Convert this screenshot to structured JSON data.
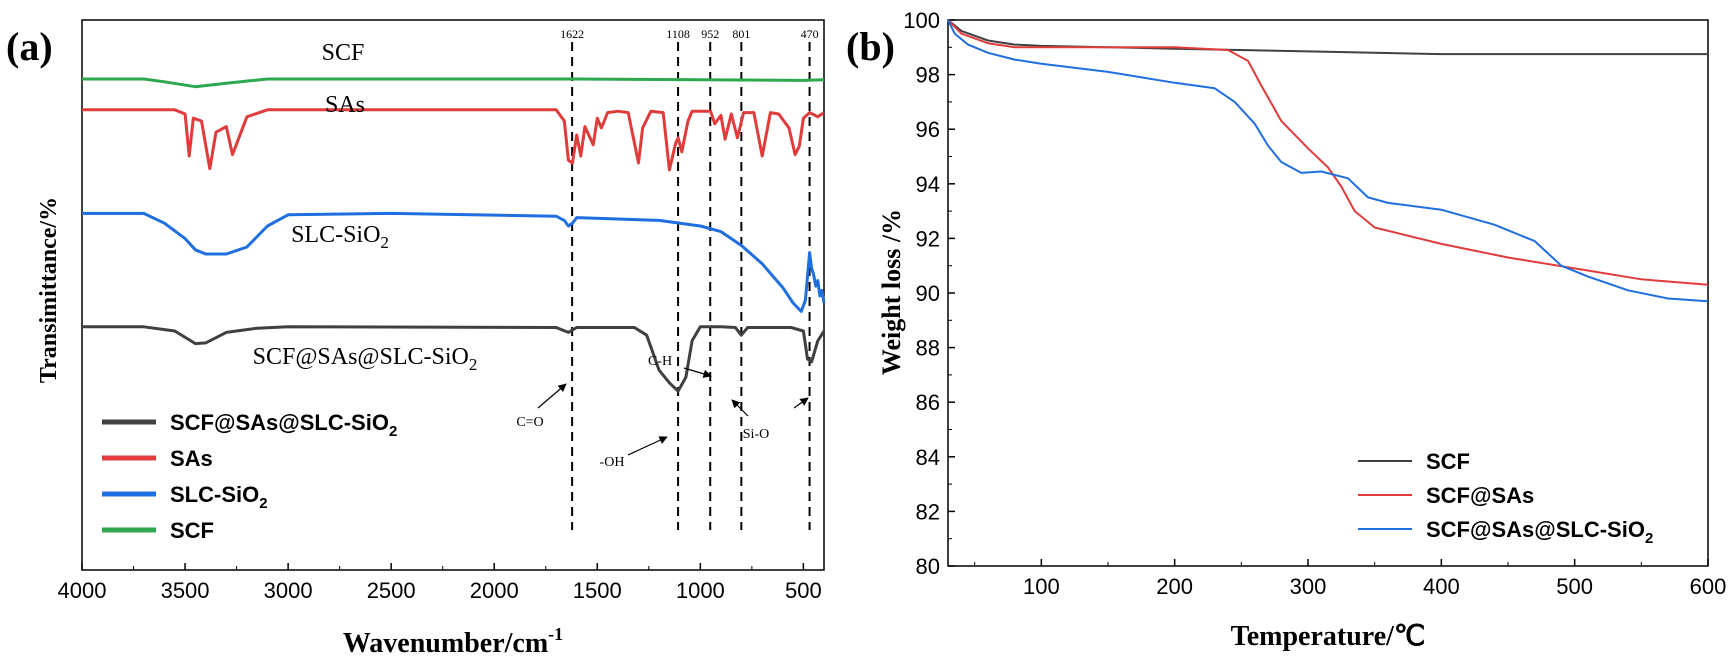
{
  "panels": {
    "a": {
      "label": "(a)"
    },
    "b": {
      "label": "(b)"
    }
  },
  "chart_data": [
    {
      "id": "ftir",
      "type": "line",
      "xlabel": "Wavenumber/cm",
      "xlabel_sup": "-1",
      "ylabel": "Transimittance/%",
      "xlim": [
        4000,
        400
      ],
      "x_ticks": [
        4000,
        3500,
        3000,
        2500,
        2000,
        1500,
        1000,
        500
      ],
      "x_tick_labels": [
        "4000",
        "3500",
        "3000",
        "2500",
        "2000",
        "1500",
        "1000",
        "500"
      ],
      "y_ticks_shown": false,
      "grid": false,
      "legend_position": "bottom-left",
      "series": [
        {
          "name": "SCF@SAs@SLC-SiO2",
          "legend_main": "SCF@SAs@SLC-SiO",
          "legend_sub": "2",
          "label_main": "SCF@SAs@SLC-SiO",
          "label_sub": "2",
          "color": "#404040",
          "points": [
            [
              4000,
              1.3
            ],
            [
              3700,
              1.3
            ],
            [
              3550,
              1.0
            ],
            [
              3450,
              0.1
            ],
            [
              3400,
              0.15
            ],
            [
              3300,
              0.9
            ],
            [
              3150,
              1.2
            ],
            [
              3000,
              1.3
            ],
            [
              1700,
              1.25
            ],
            [
              1640,
              0.9
            ],
            [
              1600,
              1.25
            ],
            [
              1320,
              1.25
            ],
            [
              1260,
              0.7
            ],
            [
              1200,
              -1.8
            ],
            [
              1150,
              -2.7
            ],
            [
              1108,
              -3.3
            ],
            [
              1070,
              -2.3
            ],
            [
              1040,
              0.3
            ],
            [
              1000,
              1.3
            ],
            [
              900,
              1.3
            ],
            [
              830,
              1.25
            ],
            [
              801,
              0.7
            ],
            [
              770,
              1.25
            ],
            [
              560,
              1.25
            ],
            [
              500,
              1.0
            ],
            [
              480,
              -1.0
            ],
            [
              460,
              -1.2
            ],
            [
              430,
              0.3
            ],
            [
              400,
              1.0
            ]
          ]
        },
        {
          "name": "SAs",
          "legend_main": "SAs",
          "legend_sub": "",
          "label_main": "SAs",
          "label_sub": "",
          "color": "#e03c3c",
          "points": [
            [
              4000,
              16.8
            ],
            [
              3550,
              16.8
            ],
            [
              3500,
              16.5
            ],
            [
              3480,
              13.5
            ],
            [
              3460,
              16.2
            ],
            [
              3420,
              16.0
            ],
            [
              3380,
              12.6
            ],
            [
              3350,
              15.2
            ],
            [
              3300,
              15.6
            ],
            [
              3270,
              13.6
            ],
            [
              3200,
              16.3
            ],
            [
              3100,
              16.8
            ],
            [
              1700,
              16.8
            ],
            [
              1660,
              16.0
            ],
            [
              1640,
              13.2
            ],
            [
              1620,
              13.0
            ],
            [
              1600,
              15.0
            ],
            [
              1580,
              13.5
            ],
            [
              1560,
              15.6
            ],
            [
              1520,
              14.3
            ],
            [
              1500,
              16.2
            ],
            [
              1480,
              15.5
            ],
            [
              1450,
              16.6
            ],
            [
              1400,
              16.7
            ],
            [
              1350,
              16.6
            ],
            [
              1300,
              13.0
            ],
            [
              1280,
              15.5
            ],
            [
              1240,
              16.7
            ],
            [
              1180,
              16.6
            ],
            [
              1150,
              12.5
            ],
            [
              1120,
              14.4
            ],
            [
              1108,
              14.8
            ],
            [
              1090,
              13.8
            ],
            [
              1060,
              16.0
            ],
            [
              1040,
              16.7
            ],
            [
              1000,
              16.7
            ],
            [
              950,
              16.7
            ],
            [
              930,
              15.8
            ],
            [
              900,
              16.4
            ],
            [
              880,
              14.7
            ],
            [
              850,
              16.5
            ],
            [
              820,
              14.8
            ],
            [
              790,
              16.6
            ],
            [
              740,
              16.6
            ],
            [
              700,
              13.5
            ],
            [
              660,
              16.6
            ],
            [
              620,
              16.5
            ],
            [
              570,
              15.5
            ],
            [
              540,
              13.6
            ],
            [
              520,
              14.2
            ],
            [
              500,
              16.2
            ],
            [
              470,
              16.6
            ],
            [
              430,
              16.3
            ],
            [
              400,
              16.6
            ]
          ]
        },
        {
          "name": "SLC-SiO2",
          "legend_main": "SLC-SiO",
          "legend_sub": "2",
          "label_main": "SLC-SiO",
          "label_sub": "2",
          "color": "#1f6fe0",
          "points": [
            [
              4000,
              9.4
            ],
            [
              3700,
              9.4
            ],
            [
              3600,
              8.7
            ],
            [
              3500,
              7.6
            ],
            [
              3450,
              6.8
            ],
            [
              3400,
              6.5
            ],
            [
              3300,
              6.5
            ],
            [
              3200,
              7.0
            ],
            [
              3100,
              8.5
            ],
            [
              3000,
              9.3
            ],
            [
              2500,
              9.4
            ],
            [
              1700,
              9.2
            ],
            [
              1660,
              8.9
            ],
            [
              1640,
              8.5
            ],
            [
              1620,
              8.7
            ],
            [
              1600,
              9.1
            ],
            [
              1400,
              9.0
            ],
            [
              1200,
              8.9
            ],
            [
              1000,
              8.5
            ],
            [
              900,
              8.1
            ],
            [
              800,
              7.1
            ],
            [
              700,
              5.8
            ],
            [
              600,
              4.1
            ],
            [
              550,
              3.0
            ],
            [
              510,
              2.4
            ],
            [
              490,
              3.2
            ],
            [
              470,
              6.6
            ],
            [
              460,
              5.5
            ],
            [
              450,
              5.0
            ],
            [
              440,
              4.2
            ],
            [
              430,
              4.6
            ],
            [
              420,
              3.5
            ],
            [
              410,
              3.9
            ],
            [
              400,
              3.0
            ]
          ]
        },
        {
          "name": "SCF",
          "legend_main": "SCF",
          "legend_sub": "",
          "label_main": "SCF",
          "label_sub": "",
          "color": "#2ea84f",
          "points": [
            [
              4000,
              19.0
            ],
            [
              3700,
              19.0
            ],
            [
              3600,
              18.8
            ],
            [
              3450,
              18.45
            ],
            [
              3300,
              18.7
            ],
            [
              3100,
              19.0
            ],
            [
              1600,
              19.0
            ],
            [
              1000,
              18.95
            ],
            [
              500,
              18.9
            ],
            [
              400,
              18.95
            ]
          ]
        }
      ],
      "ref_lines": [
        {
          "x": 1622,
          "label": "1622"
        },
        {
          "x": 1108,
          "label": "1108"
        },
        {
          "x": 952,
          "label": "952"
        },
        {
          "x": 801,
          "label": "801"
        },
        {
          "x": 470,
          "label": "470"
        }
      ],
      "annotations": [
        {
          "text": "C=O"
        },
        {
          "text": "C-H"
        },
        {
          "text": "-OH"
        },
        {
          "text": "Si-O"
        }
      ]
    },
    {
      "id": "tga",
      "type": "line",
      "xlabel": "Temperature/℃",
      "ylabel": "Weight loss /%",
      "xlim": [
        30,
        600
      ],
      "ylim": [
        80,
        100
      ],
      "x_ticks": [
        100,
        200,
        300,
        400,
        500,
        600
      ],
      "x_tick_labels": [
        "100",
        "200",
        "300",
        "400",
        "500",
        "600"
      ],
      "y_ticks": [
        80,
        82,
        84,
        86,
        88,
        90,
        92,
        94,
        96,
        98,
        100
      ],
      "y_tick_labels": [
        "80",
        "82",
        "84",
        "86",
        "88",
        "90",
        "92",
        "94",
        "96",
        "98",
        "100"
      ],
      "grid": false,
      "legend_position": "bottom-right",
      "series": [
        {
          "name": "SCF",
          "legend_main": "SCF",
          "legend_sub": "",
          "color": "#404040",
          "points": [
            [
              30,
              100
            ],
            [
              40,
              99.6
            ],
            [
              60,
              99.25
            ],
            [
              80,
              99.1
            ],
            [
              100,
              99.05
            ],
            [
              200,
              98.95
            ],
            [
              300,
              98.85
            ],
            [
              400,
              98.75
            ],
            [
              500,
              98.75
            ],
            [
              600,
              98.75
            ]
          ]
        },
        {
          "name": "SCF@SAs",
          "legend_main": "SCF@SAs",
          "legend_sub": "",
          "color": "#e03c3c",
          "points": [
            [
              30,
              100
            ],
            [
              40,
              99.5
            ],
            [
              60,
              99.15
            ],
            [
              80,
              99.0
            ],
            [
              100,
              99.0
            ],
            [
              150,
              99.0
            ],
            [
              200,
              99.0
            ],
            [
              240,
              98.9
            ],
            [
              255,
              98.5
            ],
            [
              265,
              97.6
            ],
            [
              280,
              96.3
            ],
            [
              300,
              95.3
            ],
            [
              315,
              94.6
            ],
            [
              325,
              93.9
            ],
            [
              335,
              93.0
            ],
            [
              350,
              92.4
            ],
            [
              400,
              91.8
            ],
            [
              450,
              91.3
            ],
            [
              500,
              90.9
            ],
            [
              550,
              90.5
            ],
            [
              600,
              90.3
            ]
          ]
        },
        {
          "name": "SCF@SAs@SLC-SiO2",
          "legend_main": "SCF@SAs@SLC-SiO",
          "legend_sub": "2",
          "color": "#1f6fe0",
          "points": [
            [
              30,
              100
            ],
            [
              35,
              99.5
            ],
            [
              45,
              99.1
            ],
            [
              60,
              98.8
            ],
            [
              80,
              98.55
            ],
            [
              100,
              98.4
            ],
            [
              150,
              98.1
            ],
            [
              200,
              97.7
            ],
            [
              230,
              97.5
            ],
            [
              245,
              97.0
            ],
            [
              260,
              96.2
            ],
            [
              270,
              95.4
            ],
            [
              280,
              94.8
            ],
            [
              295,
              94.4
            ],
            [
              310,
              94.45
            ],
            [
              330,
              94.2
            ],
            [
              345,
              93.5
            ],
            [
              360,
              93.3
            ],
            [
              400,
              93.05
            ],
            [
              440,
              92.5
            ],
            [
              470,
              91.9
            ],
            [
              490,
              91.0
            ],
            [
              510,
              90.6
            ],
            [
              540,
              90.1
            ],
            [
              570,
              89.8
            ],
            [
              600,
              89.7
            ]
          ]
        }
      ]
    }
  ]
}
